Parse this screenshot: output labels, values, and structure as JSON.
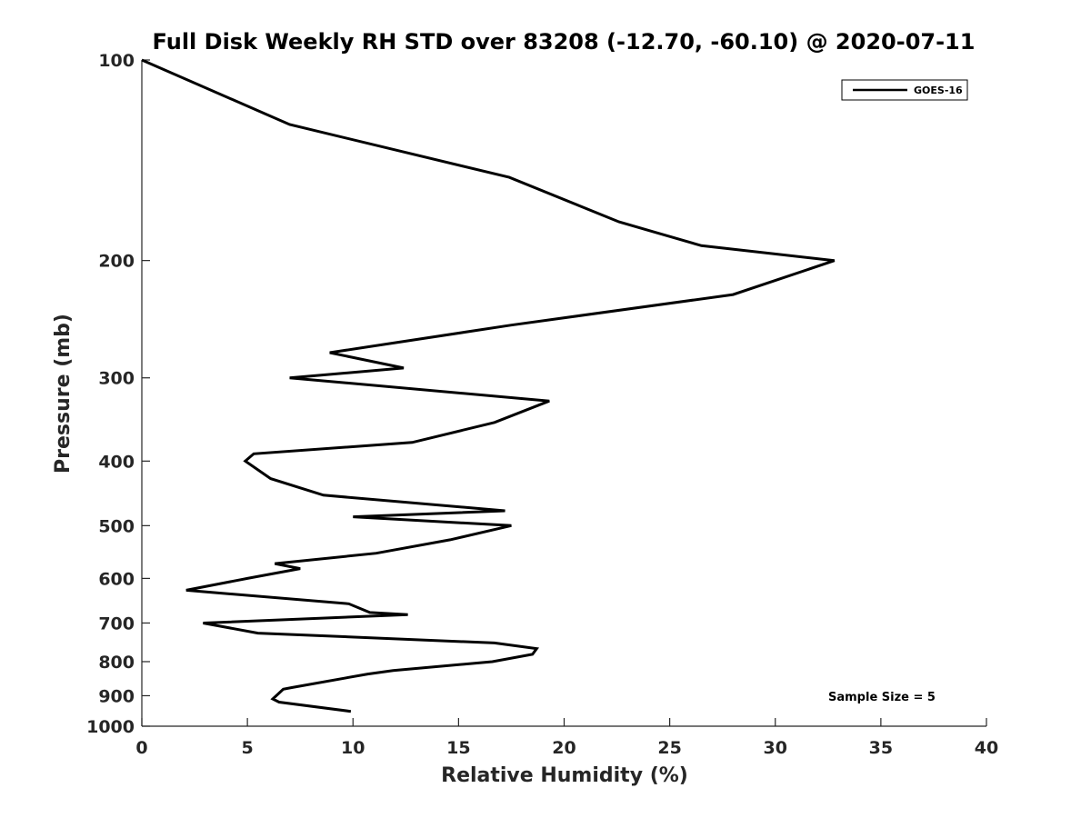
{
  "chart_data": {
    "type": "line",
    "title": "Full Disk Weekly RH STD over 83208 (-12.70, -60.10) @ 2020-07-11",
    "xlabel": "Relative Humidity (%)",
    "ylabel": "Pressure (mb)",
    "xlim": [
      0,
      40
    ],
    "ylim": [
      100,
      1000
    ],
    "y_scale": "log",
    "y_reversed": true,
    "grid": false,
    "legend_position": "top-right",
    "xticks": [
      0,
      5,
      10,
      15,
      20,
      25,
      30,
      35,
      40
    ],
    "xtick_labels": [
      "0",
      "5",
      "10",
      "15",
      "20",
      "25",
      "30",
      "35",
      "40"
    ],
    "yticks": [
      100,
      200,
      300,
      400,
      500,
      600,
      700,
      800,
      900,
      1000
    ],
    "ytick_labels": [
      "100",
      "200",
      "300",
      "400",
      "500",
      "600",
      "700",
      "800",
      "900",
      "1000"
    ],
    "series": [
      {
        "name": "GOES-16",
        "color": "#000000",
        "points": [
          [
            0,
            100
          ],
          [
            7,
            125
          ],
          [
            17.4,
            150
          ],
          [
            22.6,
            175
          ],
          [
            26.5,
            190
          ],
          [
            32.8,
            200
          ],
          [
            28,
            225
          ],
          [
            17.5,
            250
          ],
          [
            8.9,
            275
          ],
          [
            12.4,
            290
          ],
          [
            7,
            300
          ],
          [
            19.3,
            325
          ],
          [
            16.7,
            350
          ],
          [
            12.8,
            375
          ],
          [
            5.3,
            390
          ],
          [
            4.9,
            400
          ],
          [
            6.1,
            425
          ],
          [
            8.6,
            450
          ],
          [
            17.2,
            475
          ],
          [
            10,
            485
          ],
          [
            17.5,
            500
          ],
          [
            14.6,
            525
          ],
          [
            11.1,
            550
          ],
          [
            6.3,
            570
          ],
          [
            7.5,
            580
          ],
          [
            5,
            600
          ],
          [
            2.1,
            625
          ],
          [
            9.8,
            655
          ],
          [
            10.8,
            675
          ],
          [
            12.6,
            680
          ],
          [
            2.9,
            700
          ],
          [
            5.5,
            725
          ],
          [
            16.7,
            750
          ],
          [
            18.7,
            765
          ],
          [
            18.5,
            780
          ],
          [
            16.6,
            800
          ],
          [
            11.9,
            825
          ],
          [
            10.7,
            835
          ],
          [
            7.1,
            875
          ],
          [
            6.7,
            880
          ],
          [
            6.2,
            910
          ],
          [
            6.5,
            920
          ],
          [
            9.9,
            950
          ]
        ]
      }
    ],
    "annotations": [
      "Sample Size = 5"
    ]
  }
}
